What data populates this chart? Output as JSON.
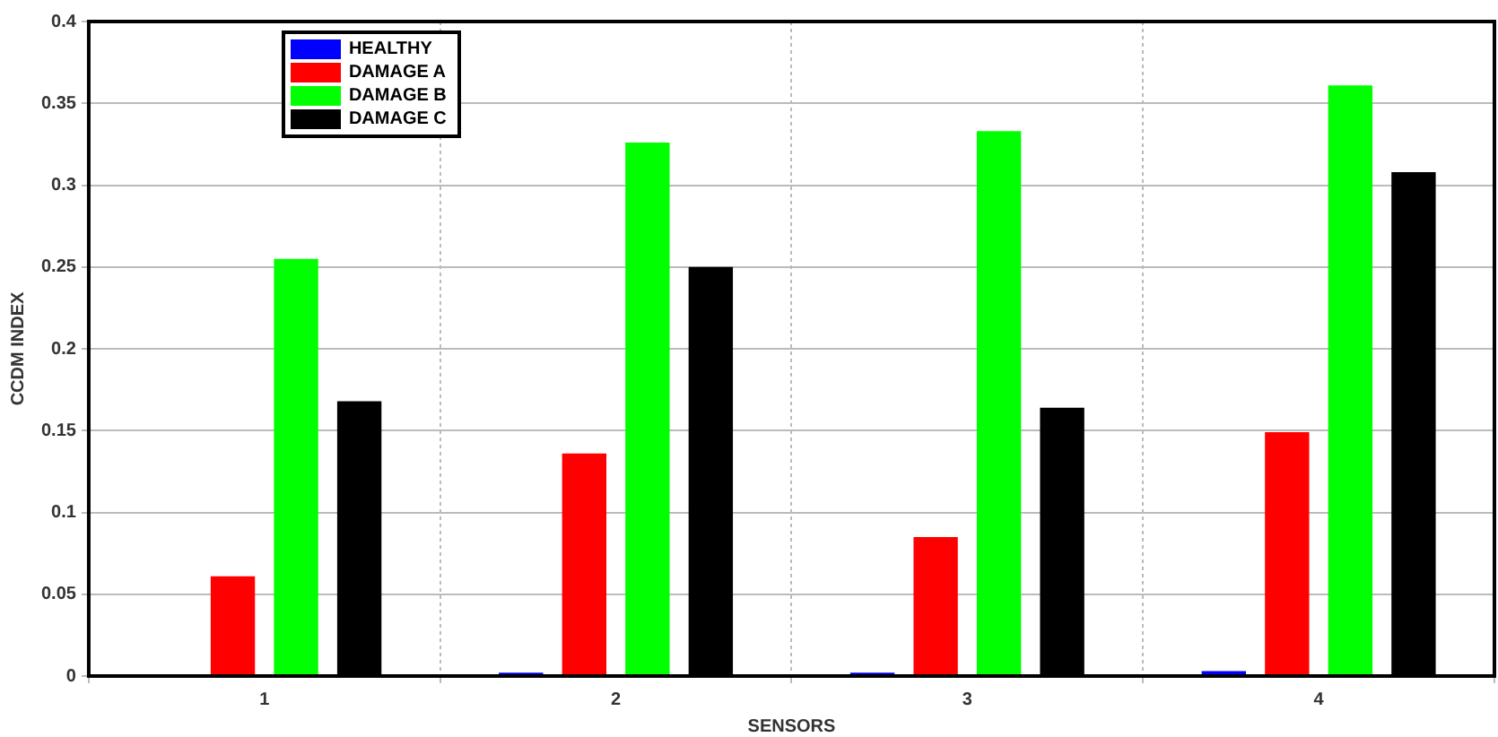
{
  "chart_data": {
    "type": "bar",
    "xlabel": "SENSORS",
    "ylabel": "CCDM INDEX",
    "x": [
      1,
      2,
      3,
      4
    ],
    "xlim": [
      0.5,
      4.5
    ],
    "xticks": [
      1,
      2,
      3,
      4
    ],
    "ylim": [
      0,
      0.4
    ],
    "yticks": [
      0,
      0.05,
      0.1,
      0.15,
      0.2,
      0.25,
      0.3,
      0.35,
      0.4
    ],
    "series": [
      {
        "name": "HEALTHY",
        "color": "#0000ff",
        "values": [
          0,
          0.002,
          0.002,
          0.003
        ]
      },
      {
        "name": "DAMAGE A",
        "color": "#ff0000",
        "values": [
          0.061,
          0.136,
          0.085,
          0.149
        ]
      },
      {
        "name": "DAMAGE B",
        "color": "#00ff00",
        "values": [
          0.255,
          0.326,
          0.333,
          0.361
        ]
      },
      {
        "name": "DAMAGE C",
        "color": "#000000",
        "values": [
          0.168,
          0.25,
          0.164,
          0.308
        ]
      }
    ],
    "grid": true,
    "legend": "top left"
  }
}
